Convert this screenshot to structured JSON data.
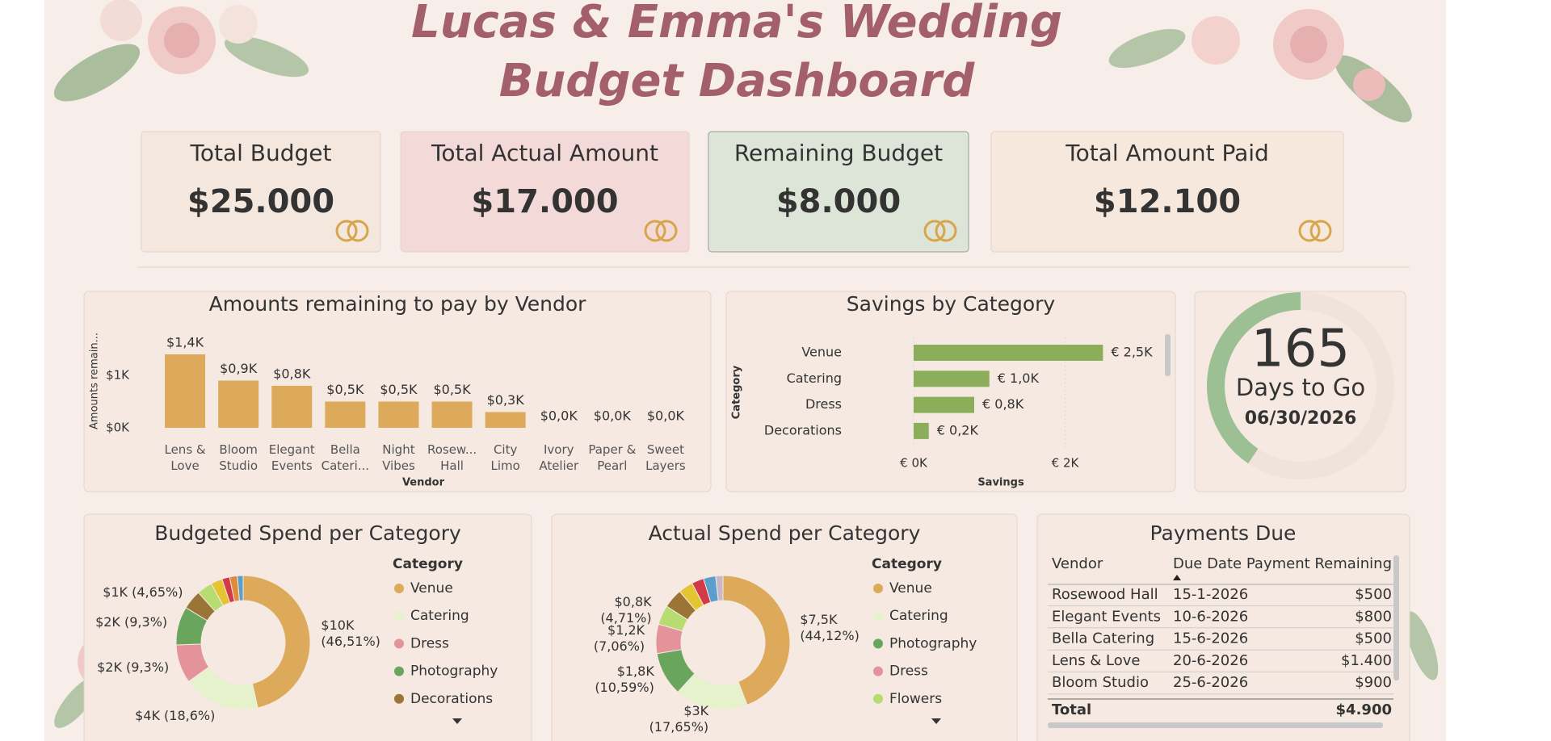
{
  "header": {
    "title_lines": [
      "Lucas & Emma's Wedding",
      "Budget Dashboard"
    ]
  },
  "cards": [
    {
      "label": "Total Budget",
      "value": "$25.000"
    },
    {
      "label": "Total Actual Amount",
      "value": "$17.000"
    },
    {
      "label": "Remaining Budget",
      "value": "$8.000"
    },
    {
      "label": "Total Amount Paid",
      "value": "$12.100"
    }
  ],
  "chart_data": [
    {
      "type": "bar",
      "title": "Amounts remaining to pay by Vendor",
      "x_label": "Vendor",
      "y_label": "Amounts remain...",
      "categories": [
        "Lens & Love",
        "Bloom Studio",
        "Elegant Events",
        "Bella Cateri...",
        "Night Vibes",
        "Rosew... Hall",
        "City Limo",
        "Ivory Atelier",
        "Paper & Pearl",
        "Sweet Layers"
      ],
      "values": [
        1400,
        900,
        800,
        500,
        500,
        500,
        300,
        0,
        0,
        0
      ],
      "value_labels": [
        "$1,4K",
        "$0,9K",
        "$0,8K",
        "$0,5K",
        "$0,5K",
        "$0,5K",
        "$0,3K",
        "$0,0K",
        "$0,0K",
        "$0,0K"
      ],
      "color": "#dcaa5a",
      "ylim": [
        0,
        1600
      ],
      "yticks": [
        {
          "value": 0,
          "label": "$0K"
        },
        {
          "value": 1000,
          "label": "$1K"
        }
      ],
      "grid": false
    },
    {
      "type": "barh",
      "title": "Savings by Category",
      "x_label": "Savings",
      "y_label": "Category",
      "categories": [
        "Venue",
        "Catering",
        "Dress",
        "Decorations"
      ],
      "values": [
        2500,
        1000,
        800,
        200
      ],
      "value_labels": [
        "€ 2,5K",
        "€ 1,0K",
        "€ 0,8K",
        "€ 0,2K"
      ],
      "color": "#8cad5a",
      "xlim": [
        0,
        3200
      ],
      "xticks": [
        {
          "value": 0,
          "label": "€ 0K"
        },
        {
          "value": 2000,
          "label": "€ 2K"
        }
      ],
      "grid": true
    },
    {
      "type": "donut",
      "title": "Budgeted Spend per Category",
      "legend_title": "Category",
      "categories": [
        "Venue",
        "Catering",
        "Dress",
        "Photography",
        "Decorations",
        null,
        null,
        null,
        null,
        null
      ],
      "values": [
        10000,
        4000,
        2000,
        2000,
        1000,
        800,
        600,
        400,
        400,
        300
      ],
      "value_labels": [
        "$10K (46,51%)",
        "$4K (18,6%)",
        "$2K (9,3%)",
        "$2K (9,3%)",
        "$1K (4,65%)",
        null,
        null,
        null,
        null,
        null
      ],
      "colors": [
        "#dcaa5a",
        "#e6f2cc",
        "#e5939b",
        "#6aa55e",
        "#9b7535",
        "#b7dc72",
        "#e4c531",
        "#d23a48",
        "#e08a3a",
        "#5a9fcc"
      ]
    },
    {
      "type": "donut",
      "title": "Actual Spend per Category",
      "legend_title": "Category",
      "categories": [
        "Venue",
        "Catering",
        "Photography",
        "Dress",
        "Flowers",
        null,
        null,
        null,
        null,
        null
      ],
      "values": [
        7500,
        3000,
        1800,
        1200,
        800,
        800,
        600,
        500,
        500,
        300
      ],
      "value_labels": [
        "$7,5K (44,12%)",
        "$3K (17,65%)",
        "$1,8K (10,59%)",
        "$1,2K (7,06%)",
        "$0,8K (4,71%)",
        null,
        null,
        null,
        null,
        null
      ],
      "colors": [
        "#dcaa5a",
        "#e6f2cc",
        "#6aa55e",
        "#e5939b",
        "#b7dc72",
        "#9b7535",
        "#e4c531",
        "#d23a48",
        "#5a9fcc",
        "#c8b8c8"
      ]
    }
  ],
  "countdown": {
    "days": 165,
    "label": "Days to Go",
    "date": "06/30/2026"
  },
  "payments_due": {
    "title": "Payments Due",
    "columns": [
      "Vendor",
      "Due Date",
      "Payment Remaining"
    ],
    "rows": [
      [
        "Rosewood Hall",
        "15-1-2026",
        "$500"
      ],
      [
        "Elegant Events",
        "10-6-2026",
        "$800"
      ],
      [
        "Bella Catering",
        "15-6-2026",
        "$500"
      ],
      [
        "Lens & Love",
        "20-6-2026",
        "$1.400"
      ],
      [
        "Bloom Studio",
        "25-6-2026",
        "$900"
      ]
    ],
    "total": [
      "Total",
      "$4.900"
    ]
  }
}
